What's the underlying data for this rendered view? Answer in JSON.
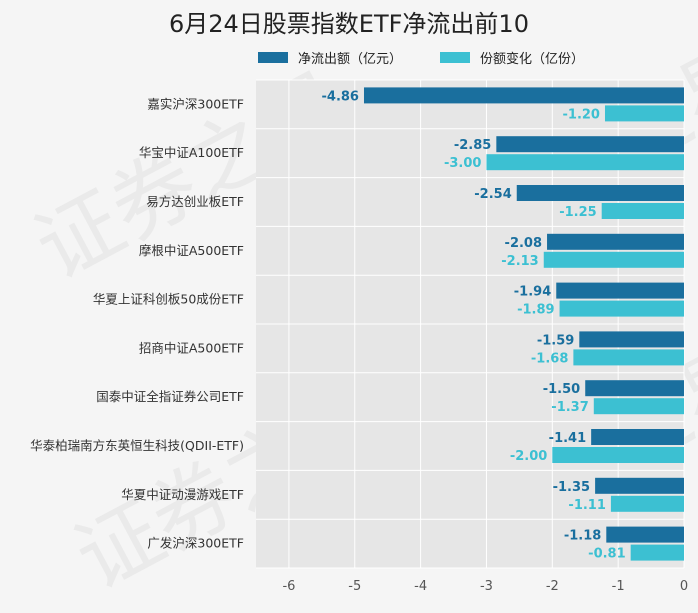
{
  "title": "6月24日股票指数ETF净流出前10",
  "watermark": "证券之星",
  "chart_data": {
    "type": "bar",
    "orientation": "horizontal",
    "title": "6月24日股票指数ETF净流出前10",
    "categories": [
      "嘉实沪深300ETF",
      "华宝中证A100ETF",
      "易方达创业板ETF",
      "摩根中证A500ETF",
      "华夏上证科创板50成份ETF",
      "招商中证A500ETF",
      "国泰中证全指证券公司ETF",
      "华泰柏瑞南方东英恒生科技(QDII-ETF)",
      "华夏中证动漫游戏ETF",
      "广发沪深300ETF"
    ],
    "series": [
      {
        "name": "净流出额（亿元）",
        "color": "#1a6f9e",
        "values": [
          -4.86,
          -2.85,
          -2.54,
          -2.08,
          -1.94,
          -1.59,
          -1.5,
          -1.41,
          -1.35,
          -1.18
        ]
      },
      {
        "name": "份额变化（亿份）",
        "color": "#3cc0d2",
        "values": [
          -1.2,
          -3.0,
          -1.25,
          -2.13,
          -1.89,
          -1.68,
          -1.37,
          -2.0,
          -1.11,
          -0.81
        ]
      }
    ],
    "xlim": [
      -6.5,
      0
    ],
    "xticks": [
      "-6",
      "-5",
      "-4",
      "-3",
      "-2",
      "-1",
      "0"
    ],
    "xtick_values": [
      -6,
      -5,
      -4,
      -3,
      -2,
      -1,
      0
    ],
    "grid": true,
    "legend_position": "top"
  }
}
